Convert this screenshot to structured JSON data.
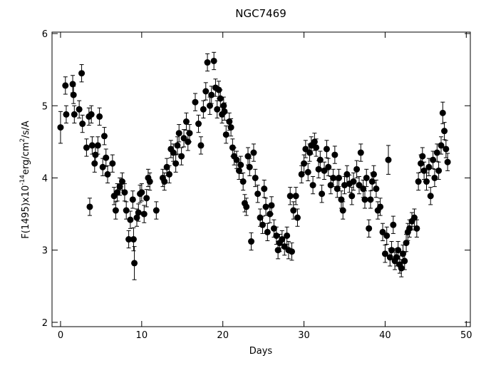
{
  "chart_data": {
    "type": "scatter",
    "title": "NGC7469",
    "xlabel": "Days",
    "ylabel": {
      "prefix": "F(1495)x10",
      "exponent": "-14",
      "unit": "erg/cm",
      "unit_exponent": "2",
      "suffix": "/s/A"
    },
    "xlim": [
      -1.05,
      50.5
    ],
    "ylim": [
      1.94,
      6.02
    ],
    "xticks": [
      0,
      10,
      20,
      30,
      40,
      50
    ],
    "yticks": [
      2,
      3,
      4,
      5,
      6
    ],
    "color": "#000000",
    "points": [
      {
        "x": 0.0,
        "y": 4.7,
        "err": 0.22
      },
      {
        "x": 0.6,
        "y": 5.28,
        "err": 0.12
      },
      {
        "x": 0.7,
        "y": 4.88,
        "err": 0.12
      },
      {
        "x": 1.5,
        "y": 5.3,
        "err": 0.12
      },
      {
        "x": 1.6,
        "y": 5.15,
        "err": 0.12
      },
      {
        "x": 1.7,
        "y": 4.88,
        "err": 0.12
      },
      {
        "x": 2.3,
        "y": 4.95,
        "err": 0.12
      },
      {
        "x": 2.6,
        "y": 5.45,
        "err": 0.12
      },
      {
        "x": 2.7,
        "y": 4.75,
        "err": 0.12
      },
      {
        "x": 3.2,
        "y": 4.42,
        "err": 0.12
      },
      {
        "x": 3.5,
        "y": 4.85,
        "err": 0.12
      },
      {
        "x": 3.6,
        "y": 3.6,
        "err": 0.12
      },
      {
        "x": 3.8,
        "y": 4.88,
        "err": 0.12
      },
      {
        "x": 3.9,
        "y": 4.45,
        "err": 0.12
      },
      {
        "x": 4.2,
        "y": 4.2,
        "err": 0.12
      },
      {
        "x": 4.3,
        "y": 4.32,
        "err": 0.12
      },
      {
        "x": 4.6,
        "y": 4.45,
        "err": 0.12
      },
      {
        "x": 4.8,
        "y": 4.85,
        "err": 0.12
      },
      {
        "x": 5.2,
        "y": 4.15,
        "err": 0.12
      },
      {
        "x": 5.4,
        "y": 4.58,
        "err": 0.12
      },
      {
        "x": 5.6,
        "y": 4.28,
        "err": 0.12
      },
      {
        "x": 5.8,
        "y": 4.05,
        "err": 0.12
      },
      {
        "x": 6.4,
        "y": 4.2,
        "err": 0.12
      },
      {
        "x": 6.6,
        "y": 3.75,
        "err": 0.12
      },
      {
        "x": 6.8,
        "y": 3.55,
        "err": 0.12
      },
      {
        "x": 7.0,
        "y": 3.8,
        "err": 0.12
      },
      {
        "x": 7.3,
        "y": 3.88,
        "err": 0.12
      },
      {
        "x": 7.6,
        "y": 3.95,
        "err": 0.12
      },
      {
        "x": 7.9,
        "y": 3.8,
        "err": 0.12
      },
      {
        "x": 8.1,
        "y": 3.55,
        "err": 0.12
      },
      {
        "x": 8.4,
        "y": 3.15,
        "err": 0.12
      },
      {
        "x": 8.6,
        "y": 3.42,
        "err": 0.12
      },
      {
        "x": 8.9,
        "y": 3.7,
        "err": 0.12
      },
      {
        "x": 9.0,
        "y": 3.15,
        "err": 0.16
      },
      {
        "x": 9.1,
        "y": 2.82,
        "err": 0.23
      },
      {
        "x": 9.4,
        "y": 3.45,
        "err": 0.12
      },
      {
        "x": 9.6,
        "y": 3.52,
        "err": 0.12
      },
      {
        "x": 9.8,
        "y": 3.78,
        "err": 0.12
      },
      {
        "x": 10.0,
        "y": 3.8,
        "err": 0.12
      },
      {
        "x": 10.3,
        "y": 3.5,
        "err": 0.12
      },
      {
        "x": 10.6,
        "y": 3.72,
        "err": 0.12
      },
      {
        "x": 10.8,
        "y": 4.0,
        "err": 0.12
      },
      {
        "x": 11.0,
        "y": 3.95,
        "err": 0.12
      },
      {
        "x": 11.8,
        "y": 3.55,
        "err": 0.12
      },
      {
        "x": 12.6,
        "y": 4.0,
        "err": 0.12
      },
      {
        "x": 12.8,
        "y": 3.95,
        "err": 0.12
      },
      {
        "x": 13.1,
        "y": 4.15,
        "err": 0.12
      },
      {
        "x": 13.4,
        "y": 4.05,
        "err": 0.12
      },
      {
        "x": 13.6,
        "y": 4.4,
        "err": 0.12
      },
      {
        "x": 13.9,
        "y": 4.35,
        "err": 0.12
      },
      {
        "x": 14.2,
        "y": 4.2,
        "err": 0.12
      },
      {
        "x": 14.4,
        "y": 4.45,
        "err": 0.12
      },
      {
        "x": 14.6,
        "y": 4.62,
        "err": 0.12
      },
      {
        "x": 14.9,
        "y": 4.3,
        "err": 0.12
      },
      {
        "x": 15.2,
        "y": 4.55,
        "err": 0.12
      },
      {
        "x": 15.5,
        "y": 4.78,
        "err": 0.12
      },
      {
        "x": 15.7,
        "y": 4.5,
        "err": 0.12
      },
      {
        "x": 15.9,
        "y": 4.62,
        "err": 0.12
      },
      {
        "x": 16.6,
        "y": 5.05,
        "err": 0.12
      },
      {
        "x": 17.0,
        "y": 4.75,
        "err": 0.12
      },
      {
        "x": 17.3,
        "y": 4.45,
        "err": 0.12
      },
      {
        "x": 17.6,
        "y": 4.95,
        "err": 0.12
      },
      {
        "x": 17.9,
        "y": 5.2,
        "err": 0.12
      },
      {
        "x": 18.1,
        "y": 5.6,
        "err": 0.12
      },
      {
        "x": 18.4,
        "y": 5.0,
        "err": 0.12
      },
      {
        "x": 18.6,
        "y": 5.15,
        "err": 0.12
      },
      {
        "x": 18.9,
        "y": 5.62,
        "err": 0.12
      },
      {
        "x": 19.1,
        "y": 5.25,
        "err": 0.12
      },
      {
        "x": 19.3,
        "y": 4.95,
        "err": 0.12
      },
      {
        "x": 19.5,
        "y": 5.22,
        "err": 0.12
      },
      {
        "x": 19.7,
        "y": 5.1,
        "err": 0.12
      },
      {
        "x": 19.9,
        "y": 4.88,
        "err": 0.12
      },
      {
        "x": 20.1,
        "y": 5.0,
        "err": 0.12
      },
      {
        "x": 20.2,
        "y": 4.92,
        "err": 0.12
      },
      {
        "x": 20.4,
        "y": 4.6,
        "err": 0.12
      },
      {
        "x": 20.8,
        "y": 4.78,
        "err": 0.12
      },
      {
        "x": 21.0,
        "y": 4.7,
        "err": 0.12
      },
      {
        "x": 21.2,
        "y": 4.42,
        "err": 0.12
      },
      {
        "x": 21.4,
        "y": 4.3,
        "err": 0.12
      },
      {
        "x": 21.7,
        "y": 4.25,
        "err": 0.12
      },
      {
        "x": 22.0,
        "y": 4.1,
        "err": 0.12
      },
      {
        "x": 22.2,
        "y": 4.18,
        "err": 0.12
      },
      {
        "x": 22.5,
        "y": 3.95,
        "err": 0.12
      },
      {
        "x": 22.7,
        "y": 3.65,
        "err": 0.12
      },
      {
        "x": 22.9,
        "y": 3.6,
        "err": 0.12
      },
      {
        "x": 23.1,
        "y": 4.3,
        "err": 0.12
      },
      {
        "x": 23.3,
        "y": 4.15,
        "err": 0.12
      },
      {
        "x": 23.5,
        "y": 3.12,
        "err": 0.12
      },
      {
        "x": 23.8,
        "y": 4.35,
        "err": 0.12
      },
      {
        "x": 24.0,
        "y": 4.0,
        "err": 0.12
      },
      {
        "x": 24.3,
        "y": 3.78,
        "err": 0.12
      },
      {
        "x": 24.6,
        "y": 3.45,
        "err": 0.12
      },
      {
        "x": 24.9,
        "y": 3.35,
        "err": 0.12
      },
      {
        "x": 25.1,
        "y": 3.85,
        "err": 0.12
      },
      {
        "x": 25.3,
        "y": 3.6,
        "err": 0.12
      },
      {
        "x": 25.5,
        "y": 3.25,
        "err": 0.12
      },
      {
        "x": 25.8,
        "y": 3.5,
        "err": 0.12
      },
      {
        "x": 26.0,
        "y": 3.62,
        "err": 0.12
      },
      {
        "x": 26.3,
        "y": 3.3,
        "err": 0.12
      },
      {
        "x": 26.6,
        "y": 3.2,
        "err": 0.12
      },
      {
        "x": 26.8,
        "y": 3.0,
        "err": 0.12
      },
      {
        "x": 27.0,
        "y": 3.1,
        "err": 0.12
      },
      {
        "x": 27.3,
        "y": 3.15,
        "err": 0.12
      },
      {
        "x": 27.6,
        "y": 3.05,
        "err": 0.12
      },
      {
        "x": 27.9,
        "y": 3.2,
        "err": 0.12
      },
      {
        "x": 28.1,
        "y": 3.0,
        "err": 0.12
      },
      {
        "x": 28.3,
        "y": 3.75,
        "err": 0.12
      },
      {
        "x": 28.5,
        "y": 2.98,
        "err": 0.12
      },
      {
        "x": 28.7,
        "y": 3.55,
        "err": 0.12
      },
      {
        "x": 29.0,
        "y": 3.75,
        "err": 0.12
      },
      {
        "x": 29.2,
        "y": 3.45,
        "err": 0.12
      },
      {
        "x": 29.7,
        "y": 4.05,
        "err": 0.12
      },
      {
        "x": 30.0,
        "y": 4.2,
        "err": 0.12
      },
      {
        "x": 30.2,
        "y": 4.4,
        "err": 0.12
      },
      {
        "x": 30.5,
        "y": 4.08,
        "err": 0.12
      },
      {
        "x": 30.7,
        "y": 4.35,
        "err": 0.12
      },
      {
        "x": 30.9,
        "y": 4.45,
        "err": 0.12
      },
      {
        "x": 31.1,
        "y": 3.9,
        "err": 0.12
      },
      {
        "x": 31.3,
        "y": 4.5,
        "err": 0.12
      },
      {
        "x": 31.5,
        "y": 4.42,
        "err": 0.12
      },
      {
        "x": 31.8,
        "y": 4.12,
        "err": 0.12
      },
      {
        "x": 32.0,
        "y": 4.25,
        "err": 0.12
      },
      {
        "x": 32.2,
        "y": 3.78,
        "err": 0.12
      },
      {
        "x": 32.5,
        "y": 4.1,
        "err": 0.12
      },
      {
        "x": 32.8,
        "y": 4.4,
        "err": 0.12
      },
      {
        "x": 33.0,
        "y": 4.15,
        "err": 0.12
      },
      {
        "x": 33.3,
        "y": 3.9,
        "err": 0.12
      },
      {
        "x": 33.6,
        "y": 4.0,
        "err": 0.12
      },
      {
        "x": 33.8,
        "y": 4.32,
        "err": 0.12
      },
      {
        "x": 34.1,
        "y": 3.85,
        "err": 0.12
      },
      {
        "x": 34.3,
        "y": 4.0,
        "err": 0.12
      },
      {
        "x": 34.6,
        "y": 3.7,
        "err": 0.12
      },
      {
        "x": 34.8,
        "y": 3.55,
        "err": 0.12
      },
      {
        "x": 35.0,
        "y": 3.9,
        "err": 0.12
      },
      {
        "x": 35.3,
        "y": 4.05,
        "err": 0.12
      },
      {
        "x": 35.6,
        "y": 3.92,
        "err": 0.12
      },
      {
        "x": 35.9,
        "y": 3.75,
        "err": 0.12
      },
      {
        "x": 36.1,
        "y": 3.95,
        "err": 0.12
      },
      {
        "x": 36.5,
        "y": 4.12,
        "err": 0.12
      },
      {
        "x": 36.8,
        "y": 3.9,
        "err": 0.12
      },
      {
        "x": 37.0,
        "y": 4.35,
        "err": 0.12
      },
      {
        "x": 37.3,
        "y": 3.85,
        "err": 0.12
      },
      {
        "x": 37.5,
        "y": 3.7,
        "err": 0.12
      },
      {
        "x": 37.7,
        "y": 4.0,
        "err": 0.12
      },
      {
        "x": 38.0,
        "y": 3.3,
        "err": 0.12
      },
      {
        "x": 38.2,
        "y": 3.7,
        "err": 0.12
      },
      {
        "x": 38.4,
        "y": 3.95,
        "err": 0.12
      },
      {
        "x": 38.6,
        "y": 4.05,
        "err": 0.12
      },
      {
        "x": 38.9,
        "y": 3.85,
        "err": 0.12
      },
      {
        "x": 39.1,
        "y": 3.55,
        "err": 0.12
      },
      {
        "x": 39.4,
        "y": 3.6,
        "err": 0.12
      },
      {
        "x": 39.7,
        "y": 3.25,
        "err": 0.12
      },
      {
        "x": 40.0,
        "y": 2.95,
        "err": 0.12
      },
      {
        "x": 40.2,
        "y": 3.2,
        "err": 0.12
      },
      {
        "x": 40.4,
        "y": 4.25,
        "err": 0.2
      },
      {
        "x": 40.6,
        "y": 2.9,
        "err": 0.12
      },
      {
        "x": 40.8,
        "y": 3.0,
        "err": 0.12
      },
      {
        "x": 41.0,
        "y": 3.35,
        "err": 0.12
      },
      {
        "x": 41.2,
        "y": 2.85,
        "err": 0.12
      },
      {
        "x": 41.4,
        "y": 2.9,
        "err": 0.12
      },
      {
        "x": 41.6,
        "y": 3.0,
        "err": 0.12
      },
      {
        "x": 41.8,
        "y": 2.8,
        "err": 0.12
      },
      {
        "x": 42.0,
        "y": 2.75,
        "err": 0.12
      },
      {
        "x": 42.2,
        "y": 2.95,
        "err": 0.12
      },
      {
        "x": 42.4,
        "y": 2.85,
        "err": 0.12
      },
      {
        "x": 42.6,
        "y": 3.1,
        "err": 0.12
      },
      {
        "x": 42.8,
        "y": 3.25,
        "err": 0.12
      },
      {
        "x": 43.0,
        "y": 3.3,
        "err": 0.12
      },
      {
        "x": 43.3,
        "y": 3.4,
        "err": 0.12
      },
      {
        "x": 43.6,
        "y": 3.45,
        "err": 0.12
      },
      {
        "x": 43.9,
        "y": 3.3,
        "err": 0.12
      },
      {
        "x": 44.1,
        "y": 3.95,
        "err": 0.12
      },
      {
        "x": 44.4,
        "y": 4.2,
        "err": 0.12
      },
      {
        "x": 44.6,
        "y": 4.3,
        "err": 0.12
      },
      {
        "x": 44.8,
        "y": 4.1,
        "err": 0.12
      },
      {
        "x": 45.1,
        "y": 3.95,
        "err": 0.12
      },
      {
        "x": 45.4,
        "y": 4.15,
        "err": 0.12
      },
      {
        "x": 45.6,
        "y": 3.75,
        "err": 0.12
      },
      {
        "x": 45.9,
        "y": 4.25,
        "err": 0.12
      },
      {
        "x": 46.1,
        "y": 4.0,
        "err": 0.12
      },
      {
        "x": 46.4,
        "y": 4.35,
        "err": 0.12
      },
      {
        "x": 46.6,
        "y": 4.1,
        "err": 0.12
      },
      {
        "x": 46.9,
        "y": 4.45,
        "err": 0.12
      },
      {
        "x": 47.1,
        "y": 4.9,
        "err": 0.15
      },
      {
        "x": 47.3,
        "y": 4.65,
        "err": 0.12
      },
      {
        "x": 47.5,
        "y": 4.4,
        "err": 0.12
      },
      {
        "x": 47.7,
        "y": 4.22,
        "err": 0.12
      }
    ]
  }
}
